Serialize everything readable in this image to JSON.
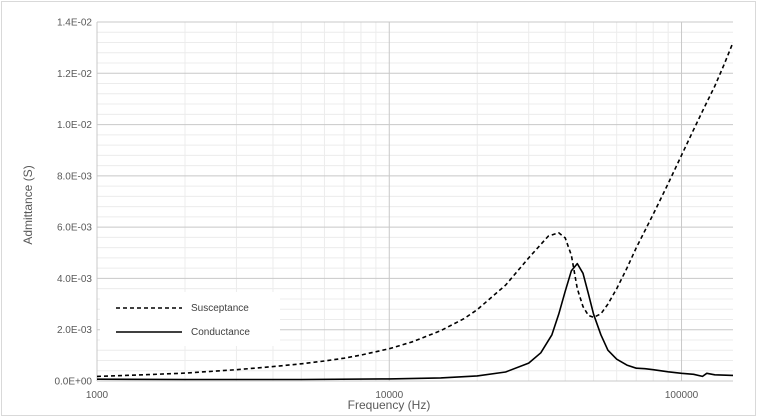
{
  "chart_data": {
    "type": "line",
    "title": "",
    "xlabel": "Frequency (Hz)",
    "ylabel": "Admittance (S)",
    "x_scale": "log",
    "xlim": [
      1000,
      150000
    ],
    "ylim": [
      0,
      0.014
    ],
    "x_ticks": [
      {
        "value": 1000,
        "label": "1000"
      },
      {
        "value": 10000,
        "label": "10000"
      },
      {
        "value": 100000,
        "label": "100000"
      }
    ],
    "y_ticks": [
      {
        "value": 0,
        "label": "0.0E+00"
      },
      {
        "value": 0.002,
        "label": "2.0E-03"
      },
      {
        "value": 0.004,
        "label": "4.0E-03"
      },
      {
        "value": 0.006,
        "label": "6.0E-03"
      },
      {
        "value": 0.008,
        "label": "8.0E-03"
      },
      {
        "value": 0.01,
        "label": "1.0E-02"
      },
      {
        "value": 0.012,
        "label": "1.2E-02"
      },
      {
        "value": 0.014,
        "label": "1.4E-02"
      }
    ],
    "grid": true,
    "legend_position": "bottom-left",
    "series": [
      {
        "name": "Susceptance",
        "style": "dashed",
        "color": "#000000",
        "points": [
          [
            1000,
            0.00018
          ],
          [
            1500,
            0.00025
          ],
          [
            2000,
            0.00031
          ],
          [
            3000,
            0.00044
          ],
          [
            4000,
            0.00056
          ],
          [
            5000,
            0.00067
          ],
          [
            6000,
            0.00078
          ],
          [
            7000,
            0.00089
          ],
          [
            8000,
            0.00101
          ],
          [
            10000,
            0.00126
          ],
          [
            12000,
            0.00153
          ],
          [
            15000,
            0.00196
          ],
          [
            18000,
            0.00243
          ],
          [
            20000,
            0.00278
          ],
          [
            25000,
            0.00374
          ],
          [
            30000,
            0.0048
          ],
          [
            35000,
            0.00565
          ],
          [
            38000,
            0.00578
          ],
          [
            40000,
            0.00558
          ],
          [
            42000,
            0.0049
          ],
          [
            44000,
            0.0036
          ],
          [
            46000,
            0.0029
          ],
          [
            48000,
            0.00256
          ],
          [
            50000,
            0.00248
          ],
          [
            53000,
            0.00262
          ],
          [
            56000,
            0.003
          ],
          [
            60000,
            0.0036
          ],
          [
            65000,
            0.0044
          ],
          [
            70000,
            0.0052
          ],
          [
            80000,
            0.0065
          ],
          [
            90000,
            0.0077
          ],
          [
            100000,
            0.0088
          ],
          [
            110000,
            0.0098
          ],
          [
            120000,
            0.0107
          ],
          [
            130000,
            0.0115
          ],
          [
            140000,
            0.01235
          ],
          [
            150000,
            0.0132
          ]
        ]
      },
      {
        "name": "Conductance",
        "style": "solid",
        "color": "#000000",
        "points": [
          [
            1000,
            7e-05
          ],
          [
            2000,
            6e-05
          ],
          [
            5000,
            6e-05
          ],
          [
            10000,
            8e-05
          ],
          [
            15000,
            0.00012
          ],
          [
            20000,
            0.0002
          ],
          [
            25000,
            0.00035
          ],
          [
            30000,
            0.0007
          ],
          [
            33000,
            0.0011
          ],
          [
            36000,
            0.0018
          ],
          [
            38000,
            0.0026
          ],
          [
            40000,
            0.0035
          ],
          [
            42000,
            0.0043
          ],
          [
            44000,
            0.00458
          ],
          [
            46000,
            0.0042
          ],
          [
            48000,
            0.0034
          ],
          [
            50000,
            0.0026
          ],
          [
            53000,
            0.0018
          ],
          [
            56000,
            0.0012
          ],
          [
            60000,
            0.00085
          ],
          [
            65000,
            0.00062
          ],
          [
            70000,
            0.0005
          ],
          [
            75000,
            0.00048
          ],
          [
            80000,
            0.00044
          ],
          [
            90000,
            0.00036
          ],
          [
            100000,
            0.0003
          ],
          [
            110000,
            0.00026
          ],
          [
            118000,
            0.00018
          ],
          [
            122000,
            0.0003
          ],
          [
            130000,
            0.00024
          ],
          [
            150000,
            0.00022
          ]
        ]
      }
    ]
  }
}
